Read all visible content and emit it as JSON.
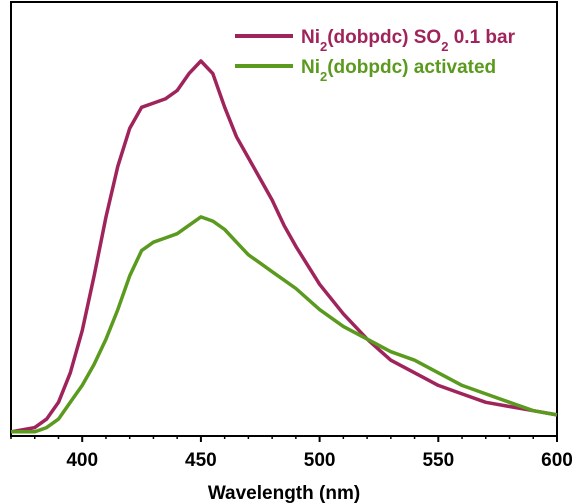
{
  "chart_data": {
    "type": "line",
    "xlabel": "Wavelength (nm)",
    "ylabel": "",
    "xlim": [
      370,
      600
    ],
    "ylim": [
      0,
      1.03
    ],
    "x_ticks": [
      400,
      450,
      500,
      550,
      600
    ],
    "y_ticks_shown": false,
    "grid": false,
    "legend_position": "top-right",
    "series": [
      {
        "name": "Ni2(dobpdc) SO2 0.1 bar",
        "legend": {
          "pre": "Ni",
          "sub1": "2",
          "mid": "(dobpdc) SO",
          "sub2": "2",
          "post": " 0.1 bar"
        },
        "color": "#a0245c",
        "points": [
          [
            370,
            0.01
          ],
          [
            380,
            0.02
          ],
          [
            385,
            0.04
          ],
          [
            390,
            0.08
          ],
          [
            395,
            0.15
          ],
          [
            400,
            0.25
          ],
          [
            405,
            0.38
          ],
          [
            410,
            0.52
          ],
          [
            415,
            0.64
          ],
          [
            420,
            0.73
          ],
          [
            425,
            0.78
          ],
          [
            430,
            0.79
          ],
          [
            435,
            0.8
          ],
          [
            440,
            0.82
          ],
          [
            445,
            0.86
          ],
          [
            450,
            0.89
          ],
          [
            455,
            0.86
          ],
          [
            460,
            0.78
          ],
          [
            465,
            0.71
          ],
          [
            470,
            0.66
          ],
          [
            475,
            0.61
          ],
          [
            480,
            0.56
          ],
          [
            485,
            0.5
          ],
          [
            490,
            0.45
          ],
          [
            500,
            0.36
          ],
          [
            510,
            0.29
          ],
          [
            520,
            0.23
          ],
          [
            530,
            0.18
          ],
          [
            540,
            0.15
          ],
          [
            550,
            0.12
          ],
          [
            560,
            0.1
          ],
          [
            570,
            0.08
          ],
          [
            580,
            0.07
          ],
          [
            590,
            0.06
          ],
          [
            600,
            0.05
          ]
        ]
      },
      {
        "name": "Ni2(dobpdc) activated",
        "legend": {
          "pre": "Ni",
          "sub1": "2",
          "mid": "(dobpdc) activated",
          "sub2": "",
          "post": ""
        },
        "color": "#5a9a1e",
        "points": [
          [
            370,
            0.01
          ],
          [
            380,
            0.01
          ],
          [
            385,
            0.02
          ],
          [
            390,
            0.04
          ],
          [
            395,
            0.08
          ],
          [
            400,
            0.12
          ],
          [
            405,
            0.17
          ],
          [
            410,
            0.23
          ],
          [
            415,
            0.3
          ],
          [
            420,
            0.38
          ],
          [
            425,
            0.44
          ],
          [
            430,
            0.46
          ],
          [
            435,
            0.47
          ],
          [
            440,
            0.48
          ],
          [
            445,
            0.5
          ],
          [
            450,
            0.52
          ],
          [
            455,
            0.51
          ],
          [
            460,
            0.49
          ],
          [
            465,
            0.46
          ],
          [
            470,
            0.43
          ],
          [
            475,
            0.41
          ],
          [
            480,
            0.39
          ],
          [
            485,
            0.37
          ],
          [
            490,
            0.35
          ],
          [
            500,
            0.3
          ],
          [
            510,
            0.26
          ],
          [
            520,
            0.23
          ],
          [
            530,
            0.2
          ],
          [
            540,
            0.18
          ],
          [
            550,
            0.15
          ],
          [
            560,
            0.12
          ],
          [
            570,
            0.1
          ],
          [
            580,
            0.08
          ],
          [
            590,
            0.06
          ],
          [
            600,
            0.05
          ]
        ]
      }
    ]
  }
}
